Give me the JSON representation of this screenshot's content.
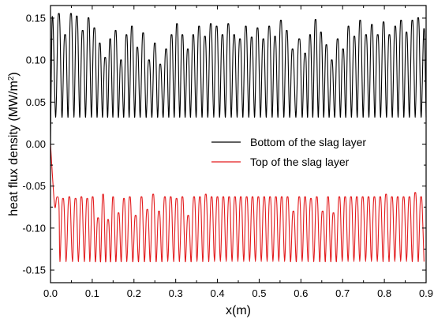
{
  "chart_data": {
    "type": "line",
    "xlabel": "x(m)",
    "ylabel": {
      "prefix": "heat flux density (MW/m",
      "sup": "2",
      "suffix": ")"
    },
    "xlim": [
      0.0,
      0.9
    ],
    "ylim": [
      -0.165,
      0.165
    ],
    "x_ticks": [
      "0.0",
      "0.1",
      "0.2",
      "0.3",
      "0.4",
      "0.5",
      "0.6",
      "0.7",
      "0.8",
      "0.9"
    ],
    "y_ticks": [
      "-0.15",
      "-0.10",
      "-0.05",
      "0.00",
      "0.05",
      "0.10",
      "0.15"
    ],
    "grid": false,
    "legend_position": "center-right",
    "series": [
      {
        "name": "Bottom of the slag layer",
        "color": "#000000",
        "start": [
          0.0,
          0.0
        ],
        "baseline": 0.032,
        "peaks": [
          [
            0.005,
            0.15
          ],
          [
            0.02,
            0.155
          ],
          [
            0.035,
            0.13
          ],
          [
            0.049,
            0.155
          ],
          [
            0.063,
            0.152
          ],
          [
            0.077,
            0.135
          ],
          [
            0.091,
            0.15
          ],
          [
            0.105,
            0.138
          ],
          [
            0.118,
            0.12
          ],
          [
            0.131,
            0.103
          ],
          [
            0.143,
            0.125
          ],
          [
            0.156,
            0.135
          ],
          [
            0.169,
            0.1
          ],
          [
            0.182,
            0.13
          ],
          [
            0.195,
            0.14
          ],
          [
            0.208,
            0.115
          ],
          [
            0.222,
            0.132
          ],
          [
            0.236,
            0.1
          ],
          [
            0.25,
            0.12
          ],
          [
            0.263,
            0.095
          ],
          [
            0.277,
            0.113
          ],
          [
            0.29,
            0.13
          ],
          [
            0.303,
            0.143
          ],
          [
            0.316,
            0.13
          ],
          [
            0.329,
            0.113
          ],
          [
            0.342,
            0.13
          ],
          [
            0.356,
            0.14
          ],
          [
            0.37,
            0.128
          ],
          [
            0.384,
            0.143
          ],
          [
            0.398,
            0.14
          ],
          [
            0.412,
            0.13
          ],
          [
            0.426,
            0.143
          ],
          [
            0.44,
            0.13
          ],
          [
            0.454,
            0.125
          ],
          [
            0.468,
            0.14
          ],
          [
            0.482,
            0.127
          ],
          [
            0.496,
            0.138
          ],
          [
            0.51,
            0.125
          ],
          [
            0.524,
            0.14
          ],
          [
            0.538,
            0.128
          ],
          [
            0.552,
            0.147
          ],
          [
            0.566,
            0.135
          ],
          [
            0.58,
            0.113
          ],
          [
            0.596,
            0.125
          ],
          [
            0.61,
            0.108
          ],
          [
            0.622,
            0.13
          ],
          [
            0.635,
            0.148
          ],
          [
            0.648,
            0.133
          ],
          [
            0.661,
            0.118
          ],
          [
            0.674,
            0.1
          ],
          [
            0.688,
            0.125
          ],
          [
            0.701,
            0.113
          ],
          [
            0.714,
            0.14
          ],
          [
            0.728,
            0.128
          ],
          [
            0.742,
            0.147
          ],
          [
            0.756,
            0.13
          ],
          [
            0.77,
            0.142
          ],
          [
            0.784,
            0.13
          ],
          [
            0.798,
            0.145
          ],
          [
            0.812,
            0.13
          ],
          [
            0.826,
            0.14
          ],
          [
            0.84,
            0.147
          ],
          [
            0.853,
            0.133
          ],
          [
            0.867,
            0.147
          ],
          [
            0.881,
            0.15
          ],
          [
            0.895,
            0.137
          ]
        ]
      },
      {
        "name": "Top of the slag layer",
        "color": "#e31a1c",
        "start": [
          0.0,
          0.0
        ],
        "baseline": -0.14,
        "peaks": [
          [
            0.015,
            -0.063
          ],
          [
            0.03,
            -0.065
          ],
          [
            0.045,
            -0.063
          ],
          [
            0.06,
            -0.065
          ],
          [
            0.074,
            -0.063
          ],
          [
            0.088,
            -0.065
          ],
          [
            0.101,
            -0.063
          ],
          [
            0.114,
            -0.088
          ],
          [
            0.126,
            -0.06
          ],
          [
            0.138,
            -0.09
          ],
          [
            0.15,
            -0.063
          ],
          [
            0.163,
            -0.082
          ],
          [
            0.176,
            -0.065
          ],
          [
            0.19,
            -0.063
          ],
          [
            0.204,
            -0.085
          ],
          [
            0.218,
            -0.063
          ],
          [
            0.232,
            -0.078
          ],
          [
            0.246,
            -0.06
          ],
          [
            0.26,
            -0.08
          ],
          [
            0.274,
            -0.063
          ],
          [
            0.288,
            -0.063
          ],
          [
            0.302,
            -0.065
          ],
          [
            0.316,
            -0.063
          ],
          [
            0.33,
            -0.085
          ],
          [
            0.344,
            -0.063
          ],
          [
            0.358,
            -0.063
          ],
          [
            0.372,
            -0.06
          ],
          [
            0.386,
            -0.063
          ],
          [
            0.4,
            -0.063
          ],
          [
            0.414,
            -0.063
          ],
          [
            0.428,
            -0.063
          ],
          [
            0.442,
            -0.063
          ],
          [
            0.456,
            -0.063
          ],
          [
            0.47,
            -0.063
          ],
          [
            0.484,
            -0.063
          ],
          [
            0.498,
            -0.063
          ],
          [
            0.512,
            -0.063
          ],
          [
            0.526,
            -0.063
          ],
          [
            0.54,
            -0.063
          ],
          [
            0.554,
            -0.063
          ],
          [
            0.568,
            -0.063
          ],
          [
            0.582,
            -0.08
          ],
          [
            0.596,
            -0.063
          ],
          [
            0.61,
            -0.063
          ],
          [
            0.624,
            -0.065
          ],
          [
            0.638,
            -0.063
          ],
          [
            0.652,
            -0.08
          ],
          [
            0.665,
            -0.063
          ],
          [
            0.678,
            -0.082
          ],
          [
            0.692,
            -0.063
          ],
          [
            0.706,
            -0.063
          ],
          [
            0.72,
            -0.063
          ],
          [
            0.734,
            -0.063
          ],
          [
            0.748,
            -0.063
          ],
          [
            0.762,
            -0.063
          ],
          [
            0.776,
            -0.063
          ],
          [
            0.79,
            -0.063
          ],
          [
            0.804,
            -0.06
          ],
          [
            0.818,
            -0.063
          ],
          [
            0.832,
            -0.063
          ],
          [
            0.846,
            -0.063
          ],
          [
            0.86,
            -0.063
          ],
          [
            0.874,
            -0.058
          ],
          [
            0.888,
            -0.063
          ]
        ]
      }
    ]
  }
}
